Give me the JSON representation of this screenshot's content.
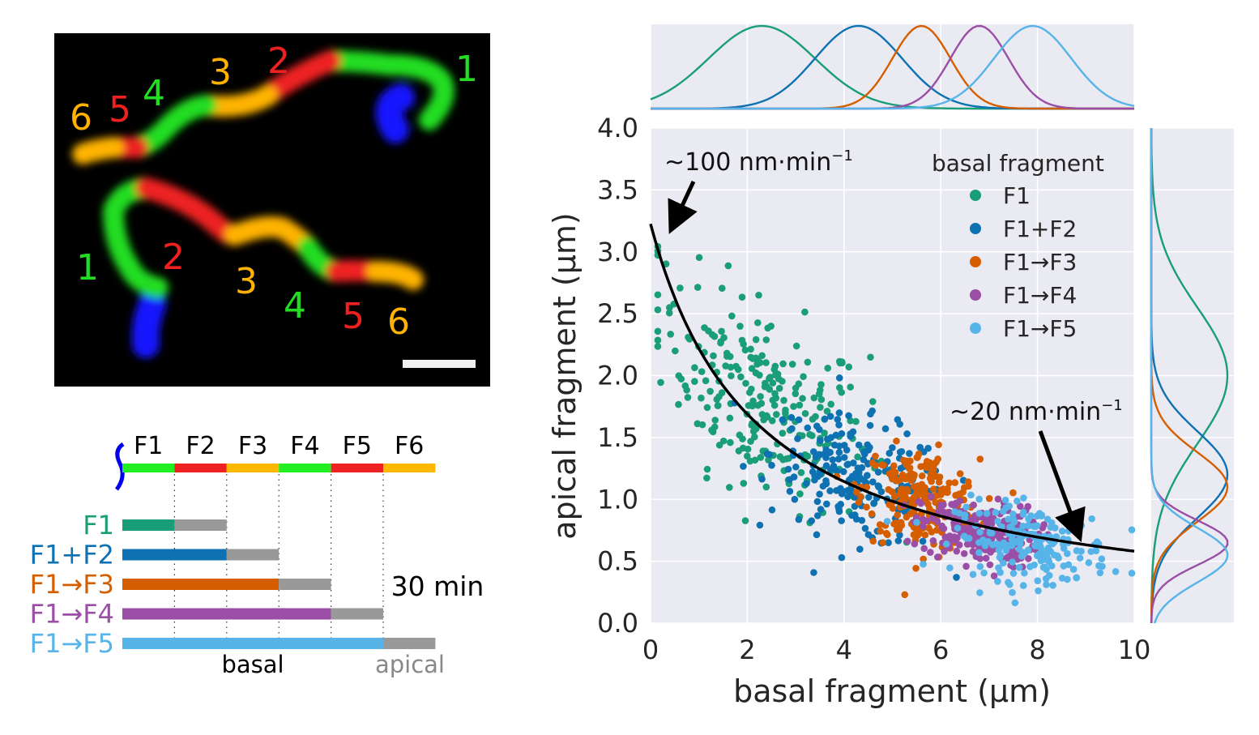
{
  "micrograph": {
    "upper_labels": [
      "6",
      "5",
      "4",
      "3",
      "2",
      "1"
    ],
    "lower_labels": [
      "1",
      "2",
      "3",
      "4",
      "5",
      "6"
    ]
  },
  "schematic": {
    "segments": [
      "F1",
      "F2",
      "F3",
      "F4",
      "F5",
      "F6"
    ],
    "segment_colors": [
      "#22ee22",
      "#ee2222",
      "#ffb800",
      "#22ee22",
      "#ee2222",
      "#ffb800"
    ],
    "rows": [
      {
        "label": "F1",
        "color": "#1a9e77",
        "basal_segments": 1
      },
      {
        "label": "F1+F2",
        "color": "#0e72b2",
        "basal_segments": 2
      },
      {
        "label": "F1→F3",
        "color": "#d55e00",
        "basal_segments": 3
      },
      {
        "label": "F1→F4",
        "color": "#9b4ea6",
        "basal_segments": 4
      },
      {
        "label": "F1→F5",
        "color": "#56b4e9",
        "basal_segments": 5
      }
    ],
    "apical_color": "#999999",
    "time_label": "30 min",
    "basal_label": "basal",
    "apical_label": "apical"
  },
  "chart_data": {
    "type": "scatter",
    "xlabel": "basal fragment (μm)",
    "ylabel": "apical fragment (μm)",
    "xlim": [
      0,
      10
    ],
    "ylim": [
      0,
      4
    ],
    "xticks": [
      "0",
      "2",
      "4",
      "6",
      "8",
      "10"
    ],
    "yticks": [
      "0.0",
      "0.5",
      "1.0",
      "1.5",
      "2.0",
      "2.5",
      "3.0",
      "3.5",
      "4.0"
    ],
    "background": "#eaeaf2",
    "grid": true,
    "legend": {
      "title": "basal fragment",
      "placement": "top-right"
    },
    "series": [
      {
        "name": "F1",
        "color": "#1a9e77",
        "x_mean": 2.3,
        "x_sd": 1.1,
        "y_mean": 2.0,
        "y_sd": 0.55,
        "n": 250
      },
      {
        "name": "F1+F2",
        "color": "#0e72b2",
        "x_mean": 4.3,
        "x_sd": 0.9,
        "y_mean": 1.2,
        "y_sd": 0.35,
        "n": 220
      },
      {
        "name": "F1→F3",
        "color": "#d55e00",
        "x_mean": 5.6,
        "x_sd": 0.6,
        "y_mean": 1.1,
        "y_sd": 0.28,
        "n": 230
      },
      {
        "name": "F1→F4",
        "color": "#9b4ea6",
        "x_mean": 6.8,
        "x_sd": 0.6,
        "y_mean": 0.65,
        "y_sd": 0.18,
        "n": 230
      },
      {
        "name": "F1→F5",
        "color": "#56b4e9",
        "x_mean": 7.9,
        "x_sd": 0.8,
        "y_mean": 0.55,
        "y_sd": 0.22,
        "n": 200
      }
    ],
    "fit_curve": {
      "type": "hyperbolic",
      "description": "y = 1/(a + b*x)",
      "a": 0.31,
      "b": 0.141,
      "x_range": [
        0,
        10
      ]
    },
    "annotations": [
      {
        "text": "~100 nm·min",
        "sup": "−1",
        "points_to": [
          0.35,
          3.15
        ]
      },
      {
        "text": "~20 nm·min",
        "sup": "−1",
        "points_to": [
          8.95,
          0.65
        ]
      }
    ],
    "marginal_x": {
      "xlim": [
        0,
        10
      ]
    },
    "marginal_y": {
      "ylim": [
        0,
        4
      ]
    }
  }
}
